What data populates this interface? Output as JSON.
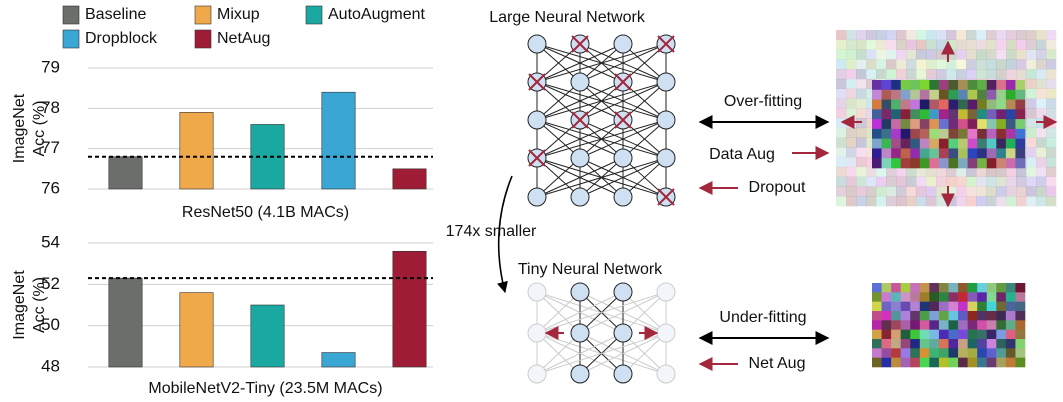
{
  "chart_data": [
    {
      "type": "bar",
      "xlabel": "ResNet50 (4.1B MACs)",
      "ylabel": [
        "ImageNet",
        "Acc (%)"
      ],
      "ylim": [
        76,
        79
      ],
      "yticks": [
        76,
        77,
        78,
        79
      ],
      "grid": true,
      "dashed_baseline": true,
      "series": [
        {
          "name": "Baseline",
          "color": "#6b6e6b",
          "values": [
            76.8
          ]
        },
        {
          "name": "Mixup",
          "color": "#f0a94a",
          "values": [
            77.9
          ]
        },
        {
          "name": "AutoAugment",
          "color": "#1aa8a0",
          "values": [
            77.6
          ]
        },
        {
          "name": "Dropblock",
          "color": "#3aa6d4",
          "values": [
            78.4
          ]
        },
        {
          "name": "NetAug",
          "color": "#9e1c36",
          "values": [
            76.5
          ]
        }
      ]
    },
    {
      "type": "bar",
      "xlabel": "MobileNetV2-Tiny (23.5M MACs)",
      "ylabel": [
        "ImageNet",
        "Acc (%)"
      ],
      "ylim": [
        48,
        54
      ],
      "yticks": [
        48,
        50,
        52,
        54
      ],
      "grid": true,
      "dashed_baseline": true,
      "series": [
        {
          "color": "#6b6e6b",
          "values": [
            52.3
          ]
        },
        {
          "color": "#f0a94a",
          "values": [
            51.6
          ]
        },
        {
          "color": "#1aa8a0",
          "values": [
            51.0
          ]
        },
        {
          "color": "#3aa6d4",
          "values": [
            48.7
          ]
        },
        {
          "color": "#9e1c36",
          "values": [
            53.6
          ]
        }
      ]
    }
  ],
  "diagram": {
    "large_network": "Large Neural Network",
    "tiny_network": "Tiny Neural Network",
    "smaller": "174x smaller",
    "over_fitting": "Over-fitting",
    "data_aug": "Data Aug",
    "dropout": "Dropout",
    "under_fitting": "Under-fitting",
    "net_aug": "Net Aug"
  }
}
